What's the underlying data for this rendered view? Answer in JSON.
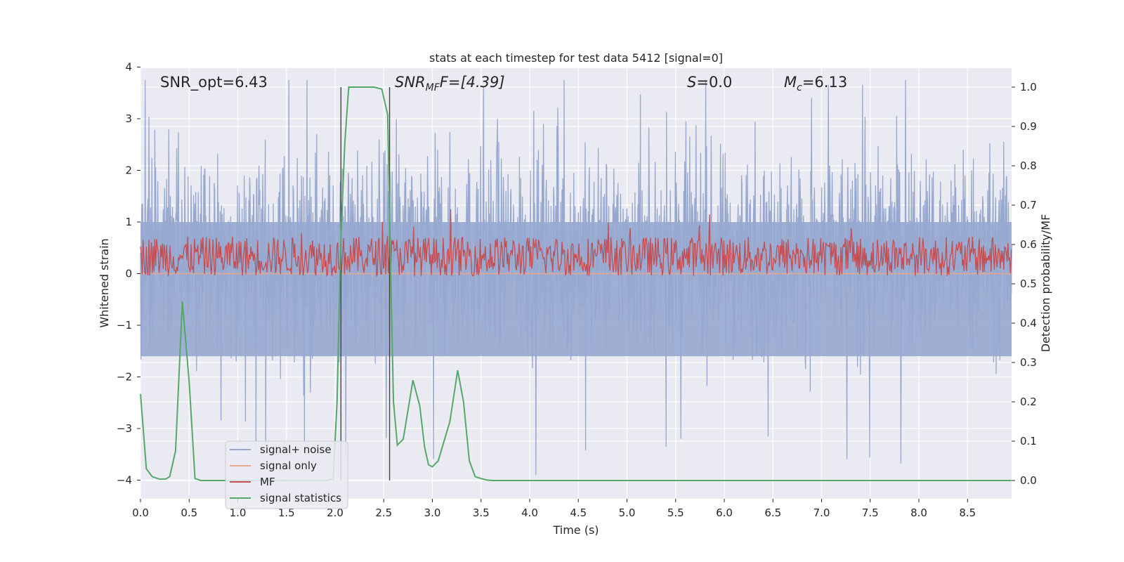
{
  "chart_data": {
    "type": "line",
    "title": "stats at each timestep for test data 5412 [signal=0]",
    "xlabel": "Time (s)",
    "ylabel": "Whitened strain",
    "ylabel_right": "Detection probability/MF",
    "xlim": [
      0.0,
      9.0
    ],
    "ylim": [
      -4.35,
      4.0
    ],
    "ylim_right": [
      -0.045,
      1.045
    ],
    "x_ticks": [
      "0.0",
      "0.5",
      "1.0",
      "1.5",
      "2.0",
      "2.5",
      "3.0",
      "3.5",
      "4.0",
      "4.5",
      "5.0",
      "5.5",
      "6.0",
      "6.5",
      "7.0",
      "7.5",
      "8.0",
      "8.5"
    ],
    "y_ticks": [
      "4",
      "3",
      "2",
      "1",
      "0",
      "−1",
      "−2",
      "−3",
      "−4"
    ],
    "y_ticks_right": [
      "1.0",
      "0.9",
      "0.8",
      "0.7",
      "0.6",
      "0.5",
      "0.4",
      "0.3",
      "0.2",
      "0.1",
      "0.0"
    ],
    "grid": true,
    "legend_position": "lower-left",
    "annotations": {
      "snr_opt": "SNR_opt=6.43",
      "snr_mf_main": "SNR",
      "snr_mf_sub": "MF",
      "snr_mf_tail": "F=[4.39]",
      "s_main": "S",
      "s_tail": "=0.0",
      "mc_main": "M",
      "mc_sub": "c",
      "mc_tail": "=6.13"
    },
    "vertical_markers_x": [
      2.06,
      2.56
    ],
    "series": [
      {
        "name": "signal+ noise",
        "color": "#97a8cf",
        "axis": "left",
        "description_values": "noise band roughly -2.5 to 3.0 with spikes to ±4"
      },
      {
        "name": "signal only",
        "color": "#e9a88c",
        "axis": "left",
        "values_constant": 0.0
      },
      {
        "name": "MF",
        "color": "#c44e52",
        "axis": "right",
        "band_low": 0.52,
        "band_high": 0.62
      },
      {
        "name": "signal statistics",
        "color": "#55a868",
        "axis": "right",
        "x": [
          0.0,
          0.06,
          0.12,
          0.2,
          0.26,
          0.3,
          0.36,
          0.43,
          0.5,
          0.56,
          0.62,
          0.7,
          0.8,
          1.0,
          1.5,
          1.9,
          1.98,
          2.02,
          2.06,
          2.1,
          2.14,
          2.2,
          2.3,
          2.4,
          2.48,
          2.54,
          2.57,
          2.6,
          2.64,
          2.7,
          2.8,
          2.87,
          2.92,
          2.96,
          3.0,
          3.06,
          3.12,
          3.18,
          3.26,
          3.32,
          3.38,
          3.44,
          3.5,
          3.56,
          3.62,
          3.7,
          4.0,
          5.0,
          6.0,
          7.0,
          8.0,
          8.95
        ],
        "y": [
          0.22,
          0.03,
          0.01,
          0.003,
          0.004,
          0.01,
          0.075,
          0.455,
          0.25,
          0.005,
          0.0,
          0.0,
          0.0,
          0.0,
          0.0,
          0.0,
          0.003,
          0.2,
          0.62,
          0.86,
          1.0,
          1.0,
          1.0,
          1.0,
          0.995,
          0.93,
          0.55,
          0.2,
          0.09,
          0.105,
          0.255,
          0.19,
          0.085,
          0.04,
          0.035,
          0.05,
          0.1,
          0.15,
          0.28,
          0.2,
          0.05,
          0.01,
          0.005,
          0.001,
          0.0,
          0.0,
          0.0,
          0.0,
          0.0,
          0.0,
          0.0,
          0.0
        ]
      }
    ]
  }
}
